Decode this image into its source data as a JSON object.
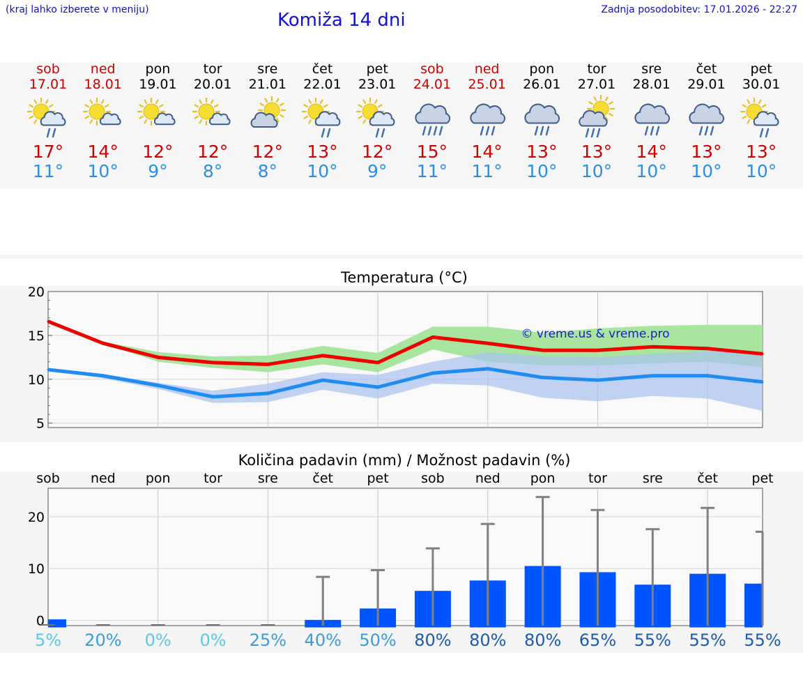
{
  "header": {
    "hint": "(kraj lahko izberete v meniju)",
    "title": "Komiža 14 dni",
    "updated": "Zadnja posodobitev: 17.01.2026 - 22:27"
  },
  "days": [
    {
      "wd": "sob",
      "date": "17.01",
      "tmax": "17°",
      "tmin": "11°",
      "icon": "sun-cloud-rain-icon",
      "weekend": true
    },
    {
      "wd": "ned",
      "date": "18.01",
      "tmax": "14°",
      "tmin": "10°",
      "icon": "sun-cloud-icon",
      "weekend": true
    },
    {
      "wd": "pon",
      "date": "19.01",
      "tmax": "12°",
      "tmin": "9°",
      "icon": "sun-cloud-icon",
      "weekend": false
    },
    {
      "wd": "tor",
      "date": "20.01",
      "tmax": "12°",
      "tmin": "8°",
      "icon": "sun-cloud-icon",
      "weekend": false
    },
    {
      "wd": "sre",
      "date": "21.01",
      "tmax": "12°",
      "tmin": "8°",
      "icon": "cloud-sun-icon",
      "weekend": false
    },
    {
      "wd": "čet",
      "date": "22.01",
      "tmax": "13°",
      "tmin": "10°",
      "icon": "sun-cloud-rain-icon",
      "weekend": false
    },
    {
      "wd": "pet",
      "date": "23.01",
      "tmax": "12°",
      "tmin": "9°",
      "icon": "sun-cloud-rain-icon",
      "weekend": false
    },
    {
      "wd": "sob",
      "date": "24.01",
      "tmax": "15°",
      "tmin": "11°",
      "icon": "cloud-heavy-rain-icon",
      "weekend": true
    },
    {
      "wd": "ned",
      "date": "25.01",
      "tmax": "14°",
      "tmin": "11°",
      "icon": "cloud-rain-icon",
      "weekend": true
    },
    {
      "wd": "pon",
      "date": "26.01",
      "tmax": "13°",
      "tmin": "10°",
      "icon": "cloud-rain-icon",
      "weekend": false
    },
    {
      "wd": "tor",
      "date": "27.01",
      "tmax": "13°",
      "tmin": "10°",
      "icon": "sun-cloud-heavy-rain-icon",
      "weekend": false
    },
    {
      "wd": "sre",
      "date": "28.01",
      "tmax": "14°",
      "tmin": "10°",
      "icon": "cloud-rain-icon",
      "weekend": false
    },
    {
      "wd": "čet",
      "date": "29.01",
      "tmax": "13°",
      "tmin": "10°",
      "icon": "cloud-rain-icon",
      "weekend": false
    },
    {
      "wd": "pet",
      "date": "30.01",
      "tmax": "13°",
      "tmin": "10°",
      "icon": "sun-cloud-rain-icon",
      "weekend": false
    }
  ],
  "colors": {
    "max_line": "#ee0000",
    "min_line": "#1e8cf0",
    "max_band": "#a8e6a0",
    "min_band": "#a8c0f0",
    "overlap_band": "#80c0a8",
    "bar": "#0055ff",
    "whisker": "#808080"
  },
  "chart_data": [
    {
      "type": "line",
      "title": "Temperatura (°C)",
      "watermark": "© vreme.us & vreme.pro",
      "x": [
        0,
        1,
        2,
        3,
        4,
        5,
        6,
        7,
        8,
        9,
        10,
        11,
        12,
        13
      ],
      "ylim": [
        4.5,
        20
      ],
      "yticks": [
        5,
        10,
        15,
        20
      ],
      "series": [
        {
          "name": "max",
          "values": [
            16.6,
            14.1,
            12.5,
            11.9,
            11.7,
            12.7,
            11.9,
            14.8,
            14.1,
            13.3,
            13.3,
            13.7,
            13.5,
            12.9
          ],
          "band_low": [
            16.6,
            14.1,
            12.0,
            11.3,
            10.8,
            11.7,
            10.8,
            13.4,
            12.0,
            11.6,
            11.6,
            11.8,
            12.0,
            11.4
          ],
          "band_high": [
            16.6,
            14.3,
            13.1,
            12.6,
            12.7,
            13.8,
            13.0,
            16.0,
            16.0,
            15.3,
            15.8,
            16.1,
            16.2,
            16.2
          ]
        },
        {
          "name": "min",
          "values": [
            11.1,
            10.4,
            9.3,
            8.0,
            8.4,
            9.9,
            9.1,
            10.7,
            11.2,
            10.2,
            9.9,
            10.4,
            10.4,
            9.7
          ],
          "band_low": [
            11.1,
            10.1,
            8.9,
            7.3,
            7.4,
            8.8,
            7.8,
            9.5,
            9.3,
            7.9,
            7.5,
            8.1,
            7.8,
            6.4
          ],
          "band_high": [
            11.1,
            10.6,
            9.6,
            8.7,
            9.5,
            10.8,
            10.5,
            12.0,
            13.1,
            12.6,
            12.5,
            12.9,
            13.2,
            13.1
          ]
        }
      ]
    },
    {
      "type": "bar",
      "title": "Količina padavin (mm) / Možnost padavin (%)",
      "categories": [
        "sob",
        "ned",
        "pon",
        "tor",
        "sre",
        "čet",
        "pet",
        "sob",
        "ned",
        "pon",
        "tor",
        "sre",
        "čet",
        "pet"
      ],
      "values": [
        0.2,
        0,
        0,
        0,
        0,
        0.1,
        2.3,
        5.7,
        7.7,
        10.5,
        9.3,
        6.9,
        9.0,
        7.1
      ],
      "max_values": [
        0,
        0,
        0,
        0,
        0,
        8.4,
        9.7,
        13.9,
        18.6,
        23.8,
        21.3,
        17.6,
        21.7,
        17.1
      ],
      "probabilities": [
        "5%",
        "20%",
        "0%",
        "0%",
        "25%",
        "40%",
        "50%",
        "80%",
        "80%",
        "80%",
        "65%",
        "55%",
        "55%",
        "55%"
      ],
      "prob_colors": [
        "#5cc8e6",
        "#3a9cd8",
        "#5cc8e6",
        "#5cc8e6",
        "#3a9cd8",
        "#3a9cd8",
        "#3a9cd8",
        "#1a5cb0",
        "#1a5cb0",
        "#1a5cb0",
        "#1a5cb0",
        "#1a5cb0",
        "#1a5cb0",
        "#1a5cb0"
      ],
      "ylim": [
        -1,
        25.5
      ],
      "yticks": [
        0,
        10,
        20
      ]
    }
  ]
}
